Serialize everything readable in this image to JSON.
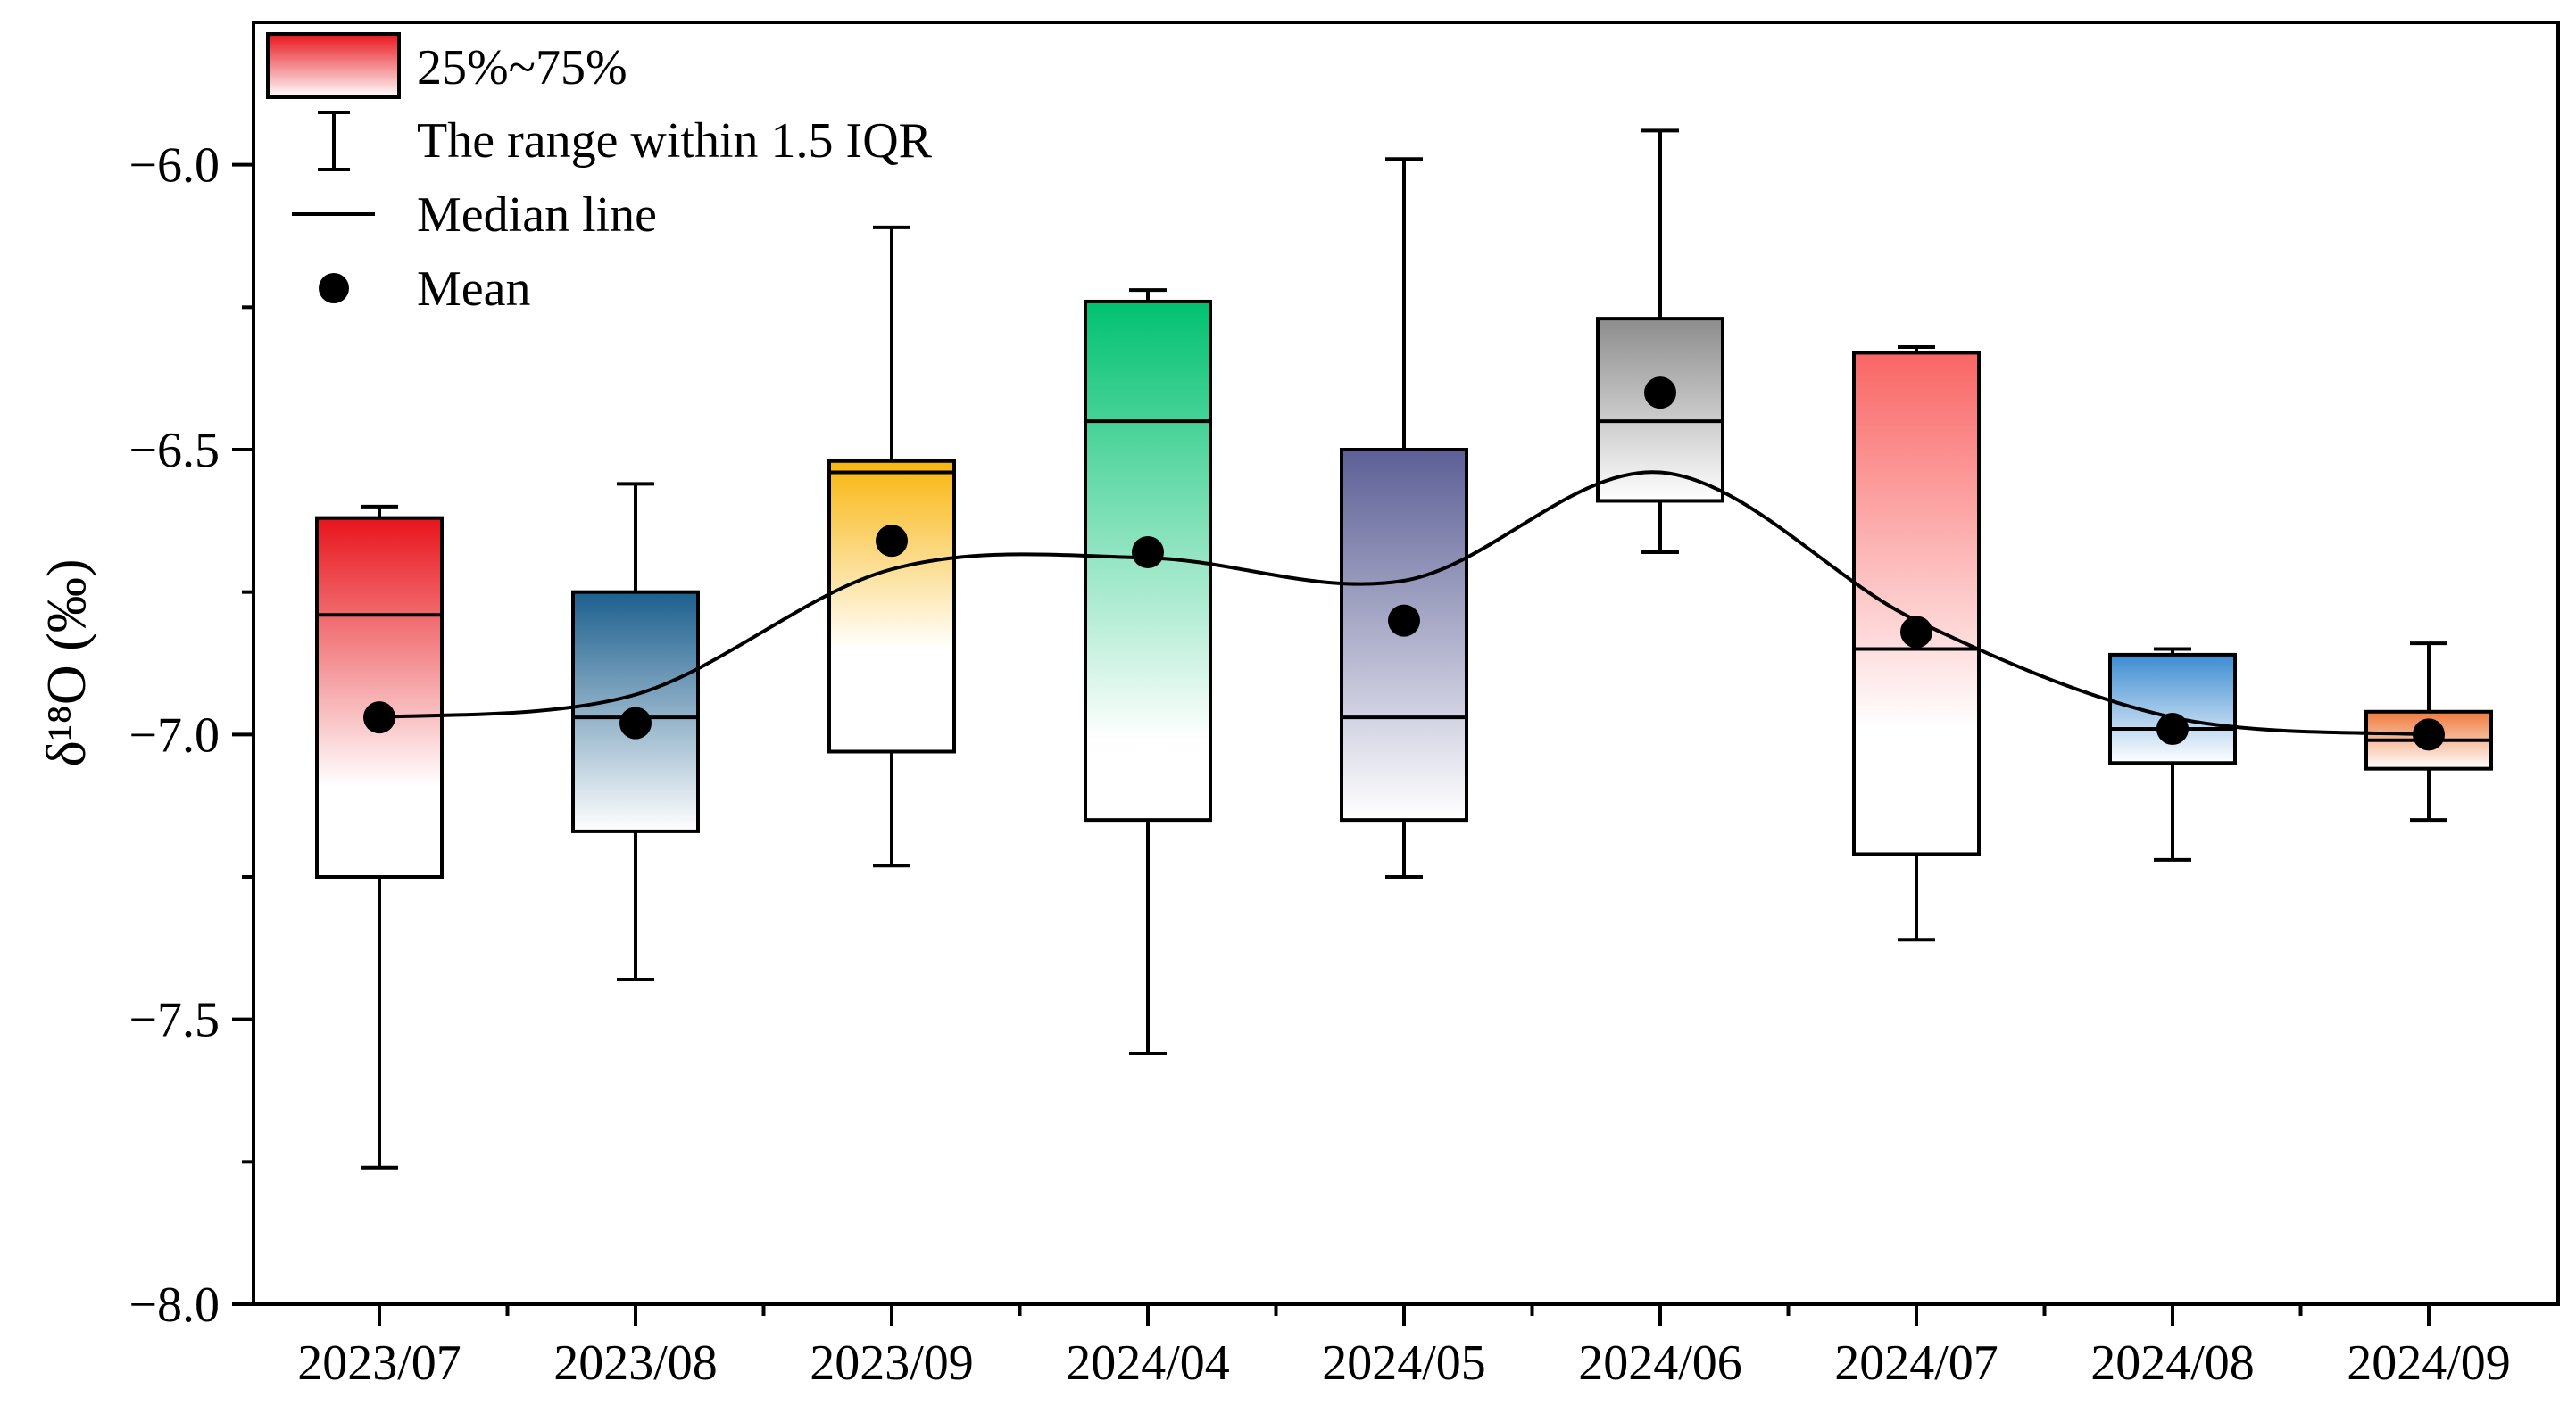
{
  "chart_data": {
    "type": "box",
    "title": "",
    "xlabel": "",
    "ylabel": "δ¹⁸O (‰)",
    "ylim": [
      -8.0,
      -5.75
    ],
    "y_major_ticks": [
      -8.0,
      -7.5,
      -7.0,
      -6.5,
      -6.0
    ],
    "y_tick_labels": [
      "−8.0",
      "−7.5",
      "−7.0",
      "−6.5",
      "−6.0"
    ],
    "y_minor_ticks": [
      -7.75,
      -7.25,
      -6.75,
      -6.25
    ],
    "categories": [
      "2023/07",
      "2023/08",
      "2023/09",
      "2024/04",
      "2024/05",
      "2024/06",
      "2024/07",
      "2024/08",
      "2024/09"
    ],
    "boxes": [
      {
        "category": "2023/07",
        "whisker_low": -7.76,
        "q1": -7.25,
        "median": -6.79,
        "q3": -6.62,
        "whisker_high": -6.6,
        "mean": -6.97,
        "color": "#e8141b",
        "fill_depth": 0.75
      },
      {
        "category": "2023/08",
        "whisker_low": -7.43,
        "q1": -7.17,
        "median": -6.97,
        "q3": -6.75,
        "whisker_high": -6.56,
        "mean": -6.98,
        "color": "#1c5f8e",
        "fill_depth": 1.0
      },
      {
        "category": "2023/09",
        "whisker_low": -7.23,
        "q1": -7.03,
        "median": -6.54,
        "q3": -6.52,
        "whisker_high": -6.11,
        "mean": -6.66,
        "color": "#f8b50c",
        "fill_depth": 0.65
      },
      {
        "category": "2024/04",
        "whisker_low": -7.56,
        "q1": -7.15,
        "median": -6.45,
        "q3": -6.24,
        "whisker_high": -6.22,
        "mean": -6.68,
        "color": "#00c170",
        "fill_depth": 0.85
      },
      {
        "category": "2024/05",
        "whisker_low": -7.25,
        "q1": -7.15,
        "median": -6.97,
        "q3": -6.5,
        "whisker_high": -5.99,
        "mean": -6.8,
        "color": "#5c5f96",
        "fill_depth": 1.0
      },
      {
        "category": "2024/06",
        "whisker_low": -6.68,
        "q1": -6.59,
        "median": -6.45,
        "q3": -6.27,
        "whisker_high": -5.94,
        "mean": -6.4,
        "color": "#8c8c8c",
        "fill_depth": 1.0
      },
      {
        "category": "2024/07",
        "whisker_low": -7.36,
        "q1": -7.21,
        "median": -6.85,
        "q3": -6.33,
        "whisker_high": -6.32,
        "mean": -6.82,
        "color": "#fa6565",
        "fill_depth": 0.75
      },
      {
        "category": "2024/08",
        "whisker_low": -7.22,
        "q1": -7.05,
        "median": -6.99,
        "q3": -6.86,
        "whisker_high": -6.85,
        "mean": -6.99,
        "color": "#3c8cd2",
        "fill_depth": 1.0
      },
      {
        "category": "2024/09",
        "whisker_low": -7.15,
        "q1": -7.06,
        "median": -7.01,
        "q3": -6.96,
        "whisker_high": -6.84,
        "mean": -7.0,
        "color": "#ee7a3c",
        "fill_depth": 1.0
      }
    ],
    "trend_line": {
      "description": "smooth curve through means",
      "values": [
        -6.97,
        -6.93,
        -6.71,
        -6.69,
        -6.73,
        -6.54,
        -6.8,
        -6.97,
        -7.0
      ]
    },
    "legend": {
      "position": "top-left",
      "items": [
        {
          "symbol": "box",
          "label": "25%~75%",
          "color": "#e8141b"
        },
        {
          "symbol": "whisker",
          "label": "The range within 1.5 IQR"
        },
        {
          "symbol": "line",
          "label": "Median line"
        },
        {
          "symbol": "dot",
          "label": "Mean"
        }
      ]
    }
  }
}
